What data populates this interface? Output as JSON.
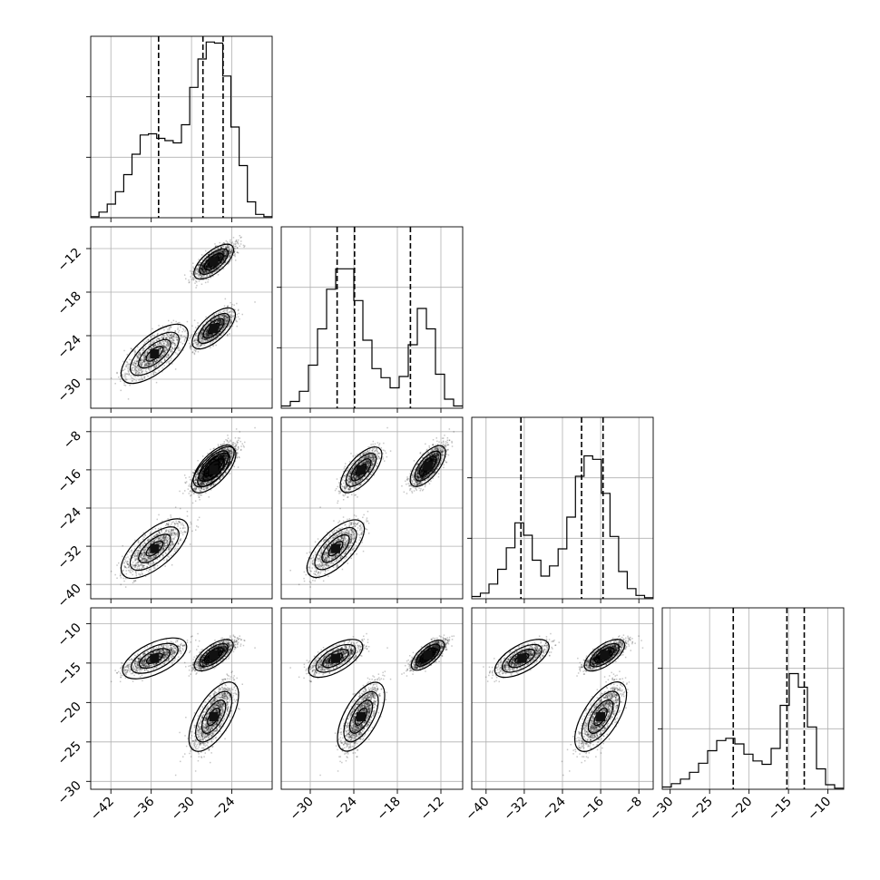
{
  "chart_data": {
    "type": "corner",
    "title": "",
    "parameters": [
      "",
      "",
      "",
      ""
    ],
    "axes": [
      {
        "range": [
          -45,
          -18
        ],
        "ticks": [
          -42,
          -36,
          -30,
          -24
        ],
        "tick_labels": [
          "−42",
          "−36",
          "−30",
          "−24"
        ]
      },
      {
        "range": [
          -34,
          -9
        ],
        "ticks": [
          -30,
          -24,
          -18,
          -12
        ],
        "tick_labels": [
          "−30",
          "−24",
          "−18",
          "−12"
        ]
      },
      {
        "range": [
          -43,
          -5
        ],
        "ticks": [
          -40,
          -32,
          -24,
          -16,
          -8
        ],
        "tick_labels": [
          "−40",
          "−32",
          "−24",
          "−16",
          "−8"
        ]
      },
      {
        "range": [
          -31,
          -8
        ],
        "ticks": [
          -30,
          -25,
          -20,
          -15,
          -10
        ],
        "tick_labels": [
          "−30",
          "−25",
          "−20",
          "−15",
          "−10"
        ]
      }
    ],
    "grid": true,
    "histograms": [
      {
        "counts": [
          0.1,
          0.5,
          1.2,
          2.3,
          3.8,
          5.6,
          7.3,
          7.4,
          7.0,
          6.8,
          6.6,
          8.2,
          11.5,
          14.0,
          15.5,
          15.4,
          12.5,
          8.0,
          4.6,
          1.4,
          0.3,
          0.1
        ],
        "quantiles": [
          -34.9,
          -28.3,
          -25.3
        ]
      },
      {
        "counts": [
          0.2,
          0.6,
          1.5,
          3.8,
          7.0,
          10.5,
          12.3,
          12.3,
          9.5,
          6.0,
          3.5,
          2.7,
          1.8,
          2.8,
          5.6,
          8.8,
          7.0,
          3.0,
          0.8,
          0.2
        ],
        "quantiles": [
          -26.3,
          -23.9,
          -16.2
        ]
      },
      {
        "counts": [
          0.2,
          0.5,
          1.3,
          2.6,
          4.5,
          6.7,
          5.6,
          3.4,
          2.0,
          2.9,
          4.4,
          7.2,
          10.8,
          12.6,
          12.3,
          9.3,
          5.5,
          2.4,
          0.9,
          0.3,
          0.1
        ],
        "quantiles": [
          -32.7,
          -20.0,
          -15.5
        ]
      },
      {
        "counts": [
          0.2,
          0.5,
          0.9,
          1.5,
          2.3,
          3.4,
          4.3,
          4.5,
          4.0,
          3.1,
          2.5,
          2.2,
          3.6,
          7.4,
          10.2,
          9.0,
          5.5,
          1.8,
          0.4,
          0.1
        ],
        "quantiles": [
          -22.0,
          -15.2,
          -13.0
        ]
      }
    ],
    "clusters": [
      {
        "center": [
          -26.7,
          -13.8,
          -15.2,
          -14.0
        ],
        "sd": [
          1.3,
          1.0,
          1.9,
          0.8
        ],
        "weight": 0.45
      },
      {
        "center": [
          -26.7,
          -23.0,
          -16.0,
          -21.8
        ],
        "sd": [
          1.4,
          1.2,
          2.1,
          2.0
        ],
        "weight": 0.3
      },
      {
        "center": [
          -35.5,
          -26.5,
          -32.5,
          -14.4
        ],
        "sd": [
          2.2,
          1.7,
          2.6,
          0.9
        ],
        "weight": 0.25
      }
    ],
    "xlabel": "",
    "ylabel": ""
  }
}
